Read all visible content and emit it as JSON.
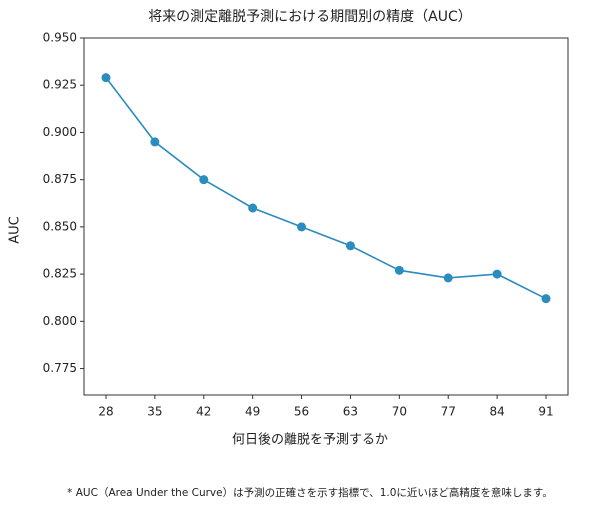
{
  "chart_data": {
    "type": "line",
    "title": "将来の測定離脱予測における期間別の精度（AUC）",
    "x_label": "何日後の離脱を予測するか",
    "y_label": "AUC",
    "footnote": "* AUC（Area Under the Curve）は予測の正確さを示す指標で、1.0に近いほど高精度を意味します。",
    "x": [
      28,
      35,
      42,
      49,
      56,
      63,
      70,
      77,
      84,
      91
    ],
    "values": [
      0.929,
      0.895,
      0.875,
      0.86,
      0.85,
      0.84,
      0.827,
      0.823,
      0.825,
      0.812
    ],
    "color": "#2b8cbe",
    "xlim": [
      24.85,
      94.15
    ],
    "xticks": [
      28,
      35,
      42,
      49,
      56,
      63,
      70,
      77,
      84,
      91
    ],
    "ylim": [
      0.761,
      0.95
    ],
    "yticks": [
      0.775,
      {
        "value": 0.8,
        "label": "0.800"
      },
      0.825,
      {
        "value": 0.85,
        "label": "0.850"
      },
      0.875,
      {
        "value": 0.9,
        "label": "0.900"
      },
      0.925,
      {
        "value": 0.95,
        "label": "0.950"
      }
    ]
  }
}
